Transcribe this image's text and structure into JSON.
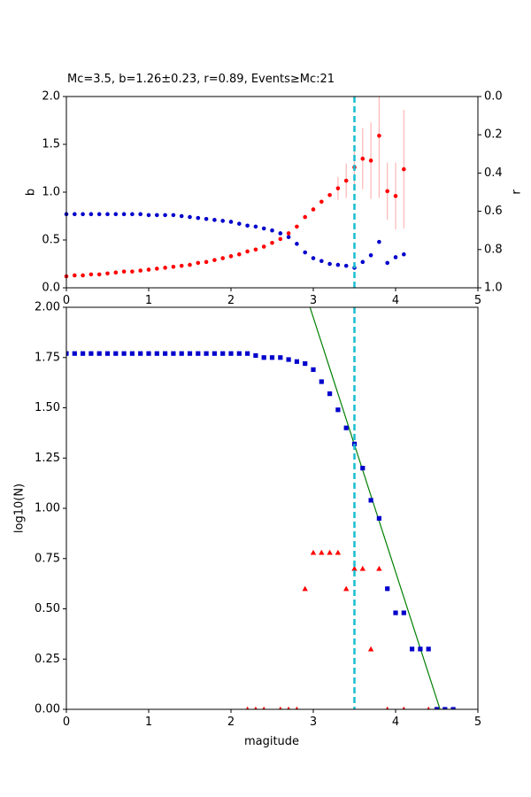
{
  "chart_data": [
    {
      "type": "scatter",
      "title": "Mc=3.5, b=1.26±0.23, r=0.89, Events≥Mc:21",
      "xlabel": "",
      "ylabel": "b",
      "ylabel_right": "r",
      "xlim": [
        0,
        5
      ],
      "ylim": [
        0,
        2.0
      ],
      "ylim_right": [
        1.0,
        0.0
      ],
      "xticks": [
        "0",
        "1",
        "2",
        "3",
        "4",
        "5"
      ],
      "yticks": [
        "0.0",
        "0.5",
        "1.0",
        "1.5",
        "2.0"
      ],
      "yticks_right": [
        "0.0",
        "0.2",
        "0.4",
        "0.6",
        "0.8",
        "1.0"
      ],
      "mc_line": 3.5,
      "colors": {
        "b_series": "#ff0000",
        "r_series": "#0000cc",
        "error_bars": "#ffb6b6",
        "mc_line": "#17becf"
      },
      "b_series": {
        "x": [
          0.0,
          0.1,
          0.2,
          0.3,
          0.4,
          0.5,
          0.6,
          0.7,
          0.8,
          0.9,
          1.0,
          1.1,
          1.2,
          1.3,
          1.4,
          1.5,
          1.6,
          1.7,
          1.8,
          1.9,
          2.0,
          2.1,
          2.2,
          2.3,
          2.4,
          2.5,
          2.6,
          2.7,
          2.8,
          2.9,
          3.0,
          3.1,
          3.2,
          3.3,
          3.4,
          3.5,
          3.6,
          3.7,
          3.8,
          3.9,
          4.0,
          4.1
        ],
        "y": [
          0.12,
          0.13,
          0.13,
          0.14,
          0.14,
          0.15,
          0.16,
          0.17,
          0.17,
          0.18,
          0.19,
          0.2,
          0.21,
          0.22,
          0.23,
          0.24,
          0.26,
          0.27,
          0.29,
          0.31,
          0.33,
          0.35,
          0.38,
          0.4,
          0.43,
          0.47,
          0.51,
          0.57,
          0.64,
          0.74,
          0.82,
          0.9,
          0.97,
          1.04,
          1.12,
          1.26,
          1.35,
          1.33,
          1.59,
          1.01,
          0.96,
          1.24
        ],
        "err": [
          0,
          0,
          0,
          0,
          0,
          0,
          0,
          0,
          0,
          0,
          0,
          0,
          0,
          0,
          0,
          0,
          0,
          0,
          0,
          0,
          0,
          0,
          0,
          0,
          0,
          0,
          0,
          0,
          0,
          0,
          0,
          0,
          0,
          0.12,
          0.18,
          0.23,
          0.32,
          0.4,
          0.65,
          0.3,
          0.35,
          0.62
        ]
      },
      "r_series": {
        "x": [
          0.0,
          0.1,
          0.2,
          0.3,
          0.4,
          0.5,
          0.6,
          0.7,
          0.8,
          0.9,
          1.0,
          1.1,
          1.2,
          1.3,
          1.4,
          1.5,
          1.6,
          1.7,
          1.8,
          1.9,
          2.0,
          2.1,
          2.2,
          2.3,
          2.4,
          2.5,
          2.6,
          2.7,
          2.8,
          2.9,
          3.0,
          3.1,
          3.2,
          3.3,
          3.4,
          3.5,
          3.6,
          3.7,
          3.8,
          3.9,
          4.0,
          4.1
        ],
        "y": [
          0.615,
          0.615,
          0.615,
          0.615,
          0.615,
          0.615,
          0.615,
          0.615,
          0.615,
          0.615,
          0.62,
          0.62,
          0.62,
          0.62,
          0.625,
          0.63,
          0.635,
          0.64,
          0.645,
          0.65,
          0.655,
          0.665,
          0.675,
          0.68,
          0.69,
          0.7,
          0.715,
          0.735,
          0.77,
          0.815,
          0.845,
          0.86,
          0.875,
          0.88,
          0.885,
          0.895,
          0.865,
          0.83,
          0.76,
          0.87,
          0.84,
          0.825
        ]
      }
    },
    {
      "type": "scatter",
      "title": "",
      "xlabel": "magitude",
      "ylabel": "log10(N)",
      "xlim": [
        0,
        5
      ],
      "ylim": [
        0,
        2.0
      ],
      "xticks": [
        "0",
        "1",
        "2",
        "3",
        "4",
        "5"
      ],
      "yticks": [
        "0.00",
        "0.25",
        "0.50",
        "0.75",
        "1.00",
        "1.25",
        "1.50",
        "1.75",
        "2.00"
      ],
      "mc_line": 3.5,
      "colors": {
        "cumulative": "#0000cc",
        "noncumulative": "#ff0000",
        "fit": "#008000",
        "mc_line": "#17becf"
      },
      "cumulative": {
        "x": [
          0.0,
          0.1,
          0.2,
          0.3,
          0.4,
          0.5,
          0.6,
          0.7,
          0.8,
          0.9,
          1.0,
          1.1,
          1.2,
          1.3,
          1.4,
          1.5,
          1.6,
          1.7,
          1.8,
          1.9,
          2.0,
          2.1,
          2.2,
          2.3,
          2.4,
          2.5,
          2.6,
          2.7,
          2.8,
          2.9,
          3.0,
          3.1,
          3.2,
          3.3,
          3.4,
          3.5,
          3.6,
          3.7,
          3.8,
          3.9,
          4.0,
          4.1,
          4.2,
          4.3,
          4.4,
          4.5,
          4.6,
          4.7
        ],
        "y": [
          1.77,
          1.77,
          1.77,
          1.77,
          1.77,
          1.77,
          1.77,
          1.77,
          1.77,
          1.77,
          1.77,
          1.77,
          1.77,
          1.77,
          1.77,
          1.77,
          1.77,
          1.77,
          1.77,
          1.77,
          1.77,
          1.77,
          1.77,
          1.76,
          1.75,
          1.75,
          1.75,
          1.74,
          1.73,
          1.72,
          1.69,
          1.63,
          1.57,
          1.49,
          1.4,
          1.32,
          1.2,
          1.04,
          0.95,
          0.6,
          0.48,
          0.48,
          0.3,
          0.3,
          0.3,
          0.0,
          0.0,
          0.0
        ]
      },
      "noncumulative": {
        "x": [
          2.2,
          2.3,
          2.4,
          2.6,
          2.7,
          2.8,
          2.9,
          3.0,
          3.1,
          3.2,
          3.3,
          3.4,
          3.5,
          3.6,
          3.7,
          3.8,
          3.9,
          4.1,
          4.4,
          4.5
        ],
        "y": [
          0.0,
          0.0,
          0.0,
          0.0,
          0.0,
          0.0,
          0.6,
          0.78,
          0.78,
          0.78,
          0.78,
          0.6,
          0.7,
          0.7,
          0.3,
          0.7,
          0.0,
          0.0,
          0.0,
          0.0
        ]
      },
      "fit_line": {
        "x": [
          2.96,
          4.54
        ],
        "y": [
          2.0,
          0.0
        ]
      }
    }
  ]
}
